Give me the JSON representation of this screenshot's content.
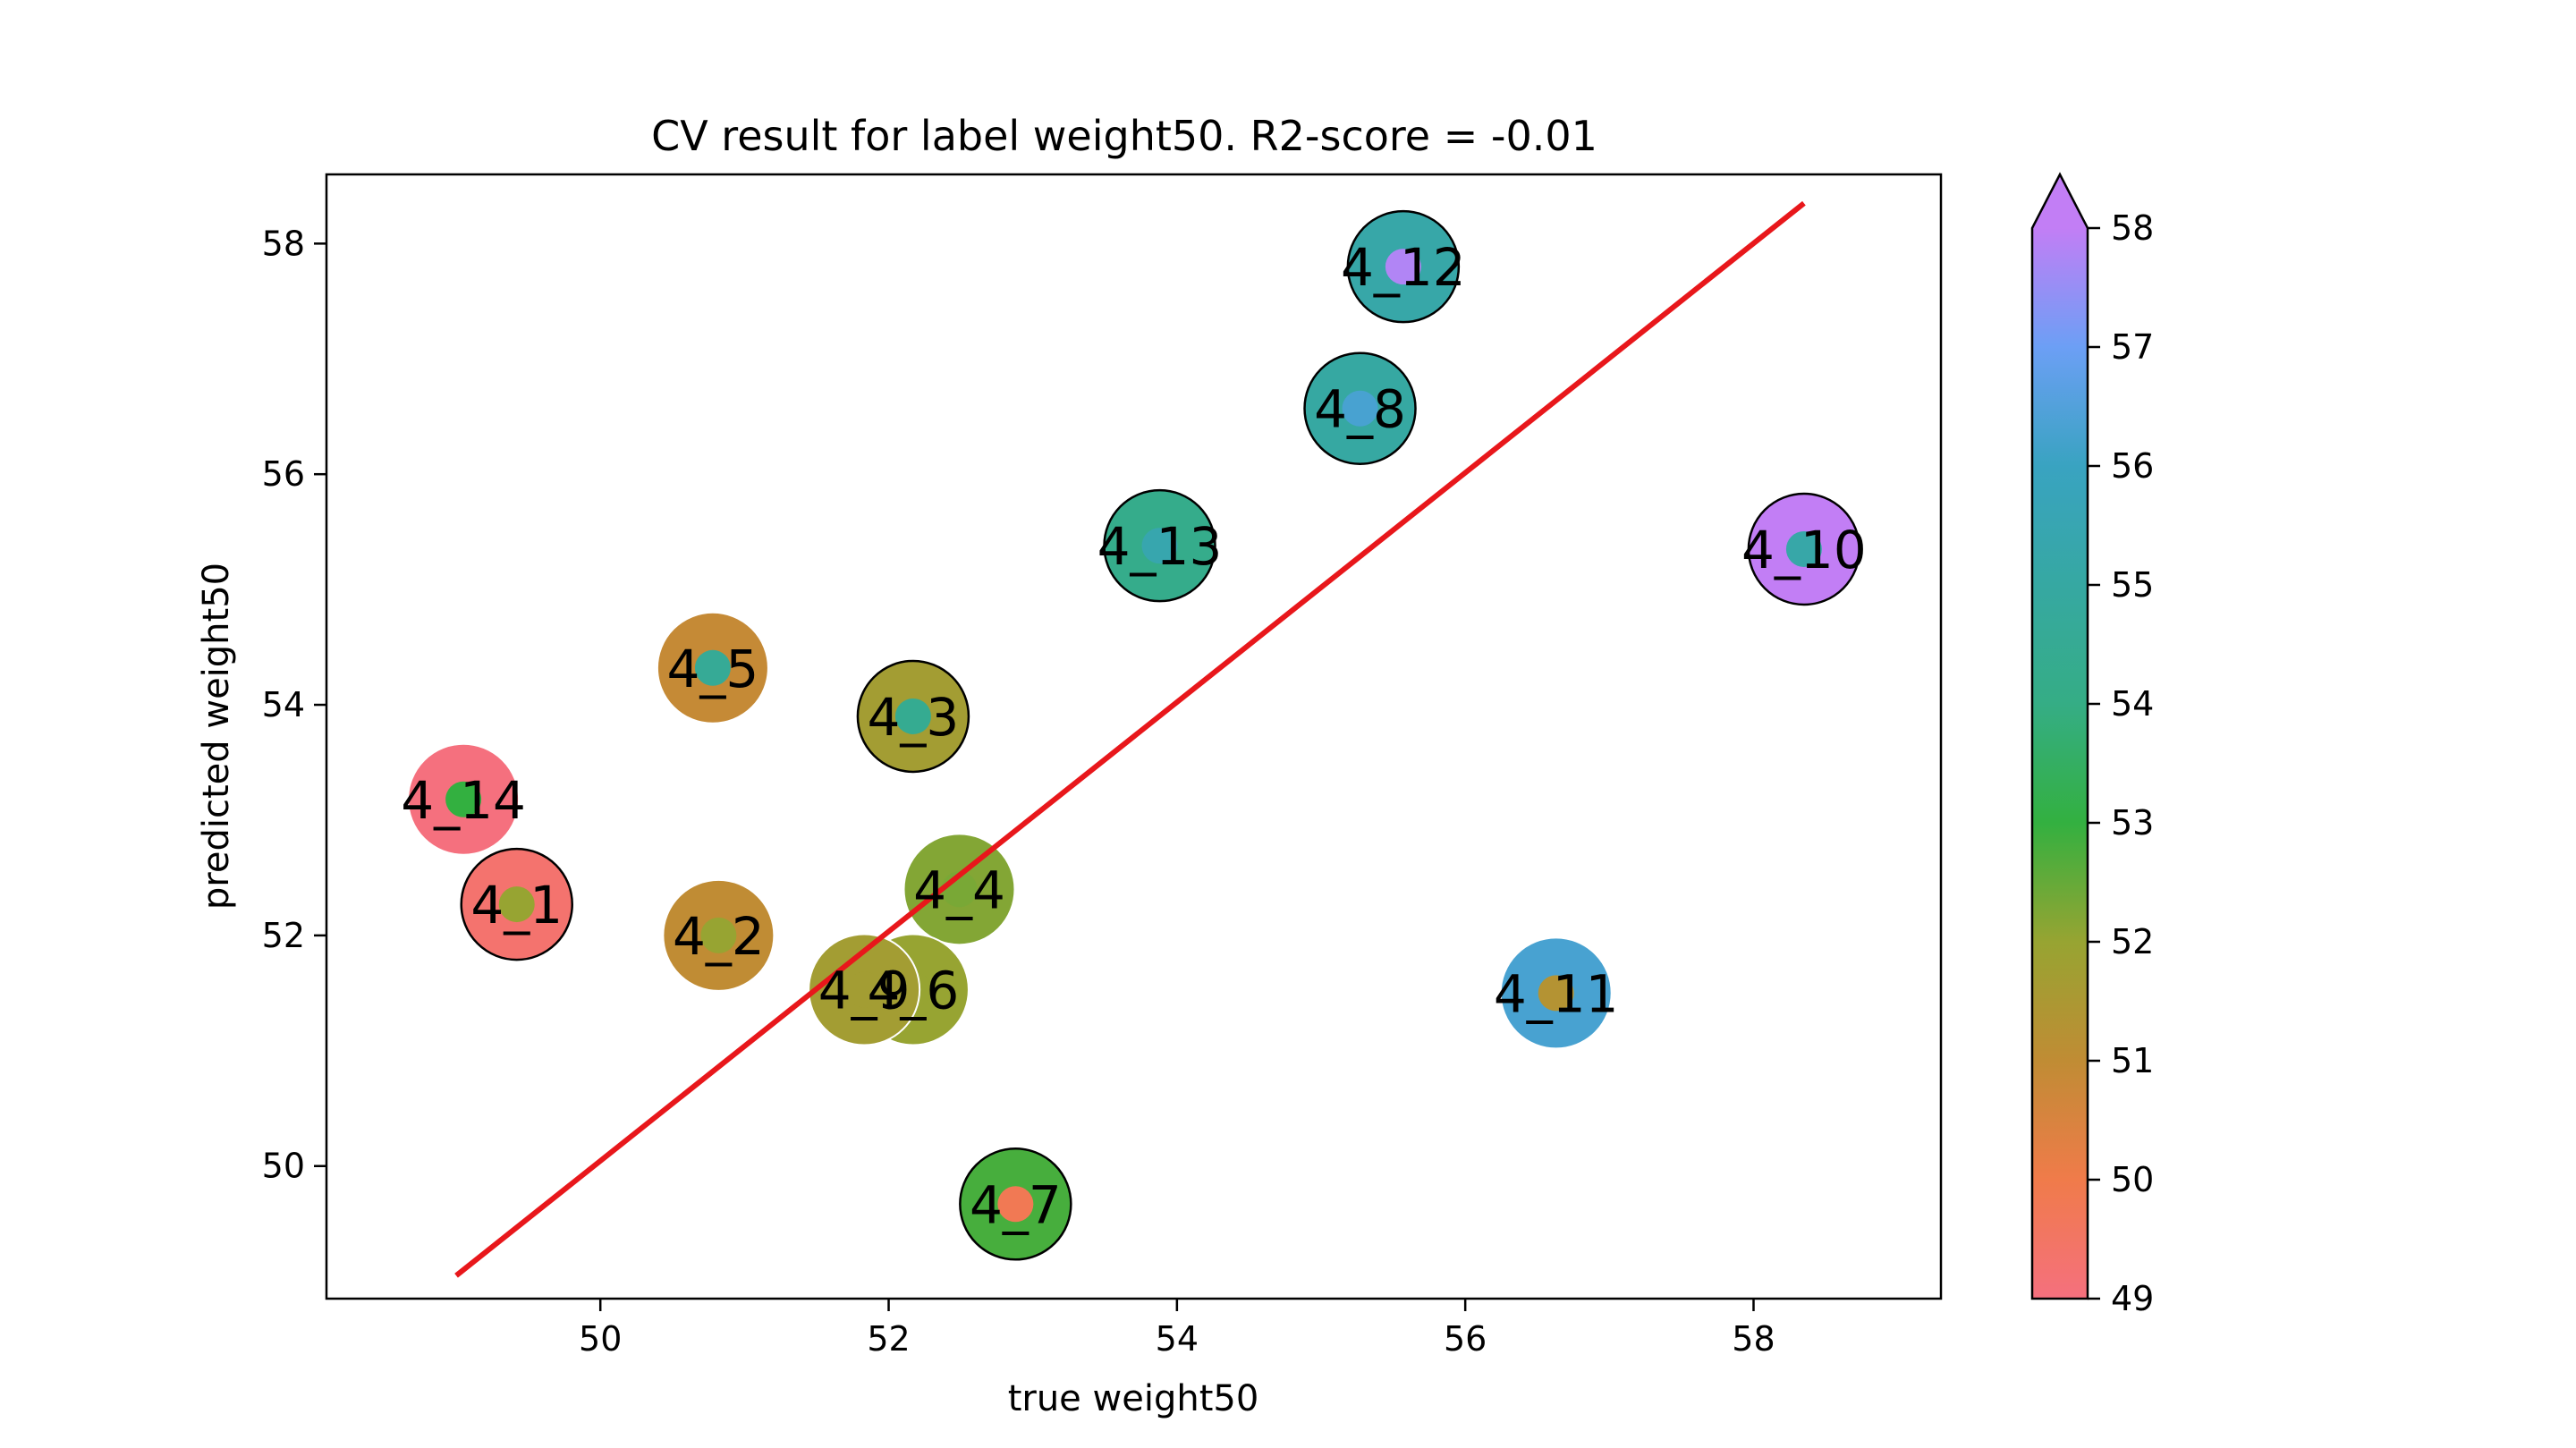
{
  "chart_data": {
    "type": "scatter",
    "title": "CV result for label weight50. R2-score = -0.01",
    "xlabel": "true weight50",
    "ylabel": "predicted weight50",
    "xlim": [
      48.1,
      59.3
    ],
    "ylim": [
      48.85,
      58.6
    ],
    "xticks": [
      50,
      52,
      54,
      56,
      58
    ],
    "yticks": [
      50,
      52,
      54,
      56,
      58
    ],
    "grid": false,
    "reference_line": {
      "from": [
        49.0,
        49.05
      ],
      "to": [
        58.35,
        58.35
      ],
      "color": "#e8171b"
    },
    "colorbar": {
      "min": 49,
      "max": 58,
      "ticks": [
        49,
        50,
        51,
        52,
        53,
        54,
        55,
        56,
        57,
        58
      ],
      "extend": "max",
      "stops": [
        {
          "v": 49,
          "c": "#f5707e"
        },
        {
          "v": 50,
          "c": "#f07b4a"
        },
        {
          "v": 51,
          "c": "#c08c34"
        },
        {
          "v": 52,
          "c": "#97a432"
        },
        {
          "v": 53,
          "c": "#33b040"
        },
        {
          "v": 54,
          "c": "#35ad85"
        },
        {
          "v": 55,
          "c": "#36a8a2"
        },
        {
          "v": 56,
          "c": "#39a3c1"
        },
        {
          "v": 57,
          "c": "#6c9ff5"
        },
        {
          "v": 58,
          "c": "#c27ef5"
        }
      ]
    },
    "points": [
      {
        "label": "4_1",
        "x": 49.42,
        "y": 52.27,
        "outer_value": 49.3,
        "inner_value": 52.0,
        "outline": true
      },
      {
        "label": "4_2",
        "x": 50.82,
        "y": 52.0,
        "outer_value": 51.0,
        "inner_value": 52.0,
        "outline": false
      },
      {
        "label": "4_3",
        "x": 52.17,
        "y": 53.9,
        "outer_value": 51.7,
        "inner_value": 54.4,
        "outline": true
      },
      {
        "label": "4_4",
        "x": 52.49,
        "y": 52.4,
        "outer_value": 52.2,
        "inner_value": 52.3,
        "outline": false
      },
      {
        "label": "4_5",
        "x": 50.78,
        "y": 54.32,
        "outer_value": 50.9,
        "inner_value": 54.6,
        "outline": false
      },
      {
        "label": "4_6",
        "x": 52.17,
        "y": 51.53,
        "outer_value": 52.0,
        "inner_value": 52.0,
        "outline": false
      },
      {
        "label": "4_7",
        "x": 52.88,
        "y": 49.67,
        "outer_value": 52.8,
        "inner_value": 49.8,
        "outline": true
      },
      {
        "label": "4_8",
        "x": 55.27,
        "y": 56.57,
        "outer_value": 55.0,
        "inner_value": 56.3,
        "outline": true
      },
      {
        "label": "4_9",
        "x": 51.83,
        "y": 51.53,
        "outer_value": 51.7,
        "inner_value": 51.7,
        "outline": false
      },
      {
        "label": "4_10",
        "x": 58.35,
        "y": 55.35,
        "outer_value": 58.0,
        "inner_value": 55.2,
        "outline": true
      },
      {
        "label": "4_11",
        "x": 56.63,
        "y": 51.5,
        "outer_value": 56.3,
        "inner_value": 51.3,
        "outline": false
      },
      {
        "label": "4_12",
        "x": 55.57,
        "y": 57.8,
        "outer_value": 55.2,
        "inner_value": 57.8,
        "outline": true
      },
      {
        "label": "4_13",
        "x": 53.88,
        "y": 55.38,
        "outer_value": 54.2,
        "inner_value": 55.4,
        "outline": true
      },
      {
        "label": "4_14",
        "x": 49.05,
        "y": 53.18,
        "outer_value": 49.0,
        "inner_value": 53.0,
        "outline": false
      }
    ]
  }
}
